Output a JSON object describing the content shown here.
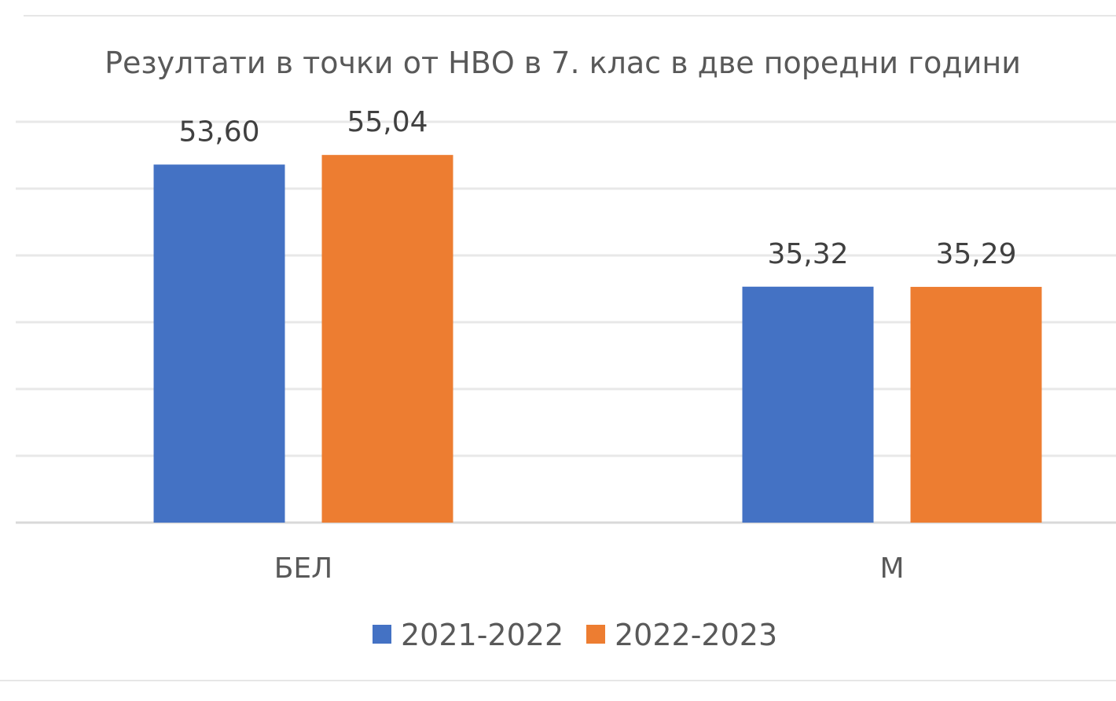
{
  "chart_data": {
    "type": "bar",
    "title": "Резултати в точки от НВО в 7. клас в две поредни години",
    "categories": [
      "БЕЛ",
      "М"
    ],
    "series": [
      {
        "name": "2021-2022",
        "values": [
          53.6,
          35.32
        ],
        "labels": [
          "53,60",
          "35,32"
        ],
        "color": "#4472C4"
      },
      {
        "name": "2022-2023",
        "values": [
          55.04,
          35.29
        ],
        "labels": [
          "55,04",
          "35,29"
        ],
        "color": "#ED7D31"
      }
    ],
    "ylim": [
      0,
      60
    ],
    "grid": true,
    "legend_position": "bottom",
    "xlabel": "",
    "ylabel": ""
  }
}
